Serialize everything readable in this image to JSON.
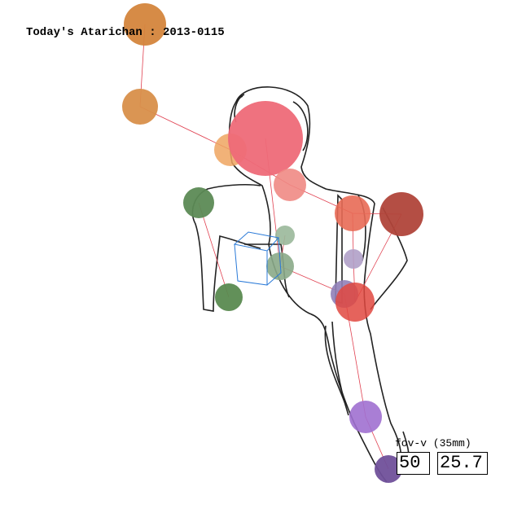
{
  "header": {
    "title": "Today's Atarichan : 2013-0115"
  },
  "controls": {
    "label": "fov-v (35mm)",
    "fov_input": "50",
    "fov_value": "25.7"
  }
}
